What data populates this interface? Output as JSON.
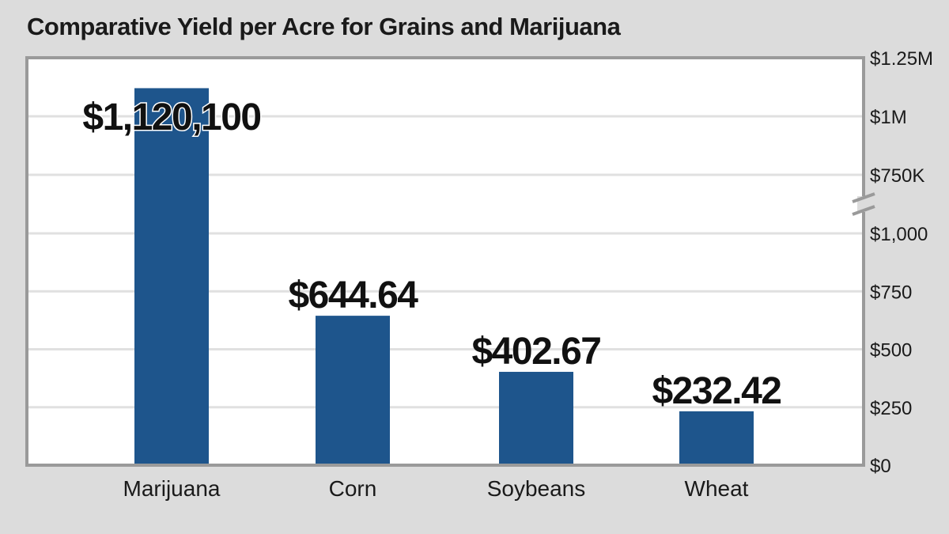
{
  "title": "Comparative Yield per Acre for Grains and Marijuana",
  "colors": {
    "bar": "#1e558c",
    "background": "#dcdcdc",
    "plot_background": "#ffffff",
    "frame": "#9a9a9a",
    "grid": "#e0e0e0"
  },
  "chart_data": {
    "type": "bar",
    "title": "Comparative Yield per Acre for Grains and Marijuana",
    "xlabel": "",
    "ylabel": "",
    "categories": [
      "Marijuana",
      "Corn",
      "Soybeans",
      "Wheat"
    ],
    "values": [
      1120100,
      644.64,
      402.67,
      232.42
    ],
    "data_labels": [
      "$1,120,100",
      "$644.64",
      "$402.67",
      "$232.42"
    ],
    "y_axis": {
      "position": "right",
      "broken": true,
      "lower_segment": {
        "range": [
          0,
          1000
        ],
        "ticks": [
          0,
          250,
          500,
          750,
          1000
        ],
        "tick_labels": [
          "$0",
          "$250",
          "$500",
          "$750",
          "$1,000"
        ]
      },
      "upper_segment": {
        "range": [
          750000,
          1250000
        ],
        "ticks": [
          750000,
          1000000,
          1250000
        ],
        "tick_labels": [
          "$750K",
          "$1M",
          "$1.25M"
        ]
      }
    },
    "grid": true,
    "legend": "none"
  }
}
